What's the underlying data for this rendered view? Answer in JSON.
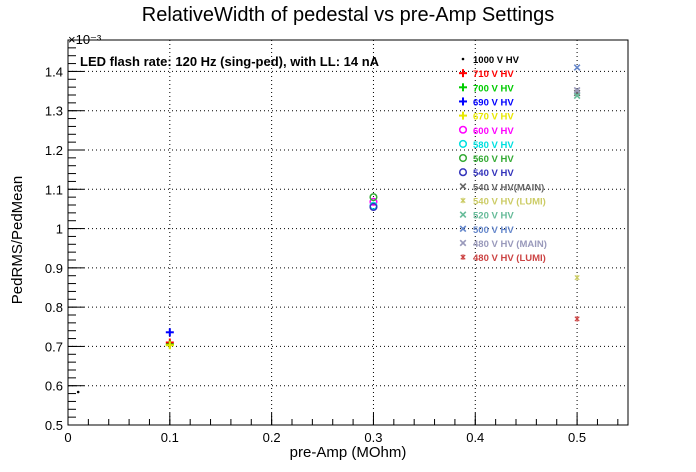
{
  "chart_data": {
    "type": "scatter",
    "title": "RelativeWidth of pedestal vs pre-Amp Settings",
    "xlabel": "pre-Amp (MOhm)",
    "ylabel": "PedRMS/PedMean",
    "y_exponent": "×10⁻³",
    "annotation": "LED flash rate: 120 Hz  (sing-ped), with LL: 14 nA",
    "xlim": [
      0,
      0.55
    ],
    "ylim": [
      0.5,
      1.48
    ],
    "x_ticks": [
      "0",
      "0.1",
      "0.2",
      "0.3",
      "0.4",
      "0.5"
    ],
    "y_ticks": [
      "0.5",
      "0.6",
      "0.7",
      "0.8",
      "0.9",
      "1",
      "1.1",
      "1.2",
      "1.3",
      "1.4"
    ],
    "grid": true,
    "legend_position": "top-right",
    "series": [
      {
        "name": "1000 V HV",
        "marker": "dot",
        "color": "#000000",
        "points": [
          [
            0.01,
            0.584
          ]
        ]
      },
      {
        "name": "710 V HV",
        "marker": "plus",
        "color": "#ff0000",
        "points": [
          [
            0.1,
            0.71
          ]
        ]
      },
      {
        "name": "700 V HV",
        "marker": "plus",
        "color": "#00cc00",
        "points": [
          [
            0.1,
            0.705
          ]
        ]
      },
      {
        "name": "690 V HV",
        "marker": "plus",
        "color": "#0000ff",
        "points": [
          [
            0.1,
            0.736
          ]
        ]
      },
      {
        "name": "670 V HV",
        "marker": "plus",
        "color": "#e8e800",
        "points": [
          [
            0.1,
            0.703
          ]
        ]
      },
      {
        "name": "600 V HV",
        "marker": "circle",
        "color": "#ff00ff",
        "points": [
          [
            0.3,
            1.068
          ]
        ]
      },
      {
        "name": "580 V HV",
        "marker": "circle",
        "color": "#00e0e0",
        "points": [
          [
            0.3,
            1.058
          ]
        ]
      },
      {
        "name": "560 V HV",
        "marker": "circle",
        "color": "#33aa33",
        "points": [
          [
            0.3,
            1.08
          ]
        ]
      },
      {
        "name": "540 V HV",
        "marker": "circle",
        "color": "#3333bb",
        "points": [
          [
            0.3,
            1.055
          ]
        ]
      },
      {
        "name": "540 V HV(MAIN)",
        "marker": "x",
        "color": "#666666",
        "points": [
          [
            0.5,
            1.345
          ]
        ]
      },
      {
        "name": "540 V HV (LUMI)",
        "marker": "star",
        "color": "#cccc66",
        "points": [
          [
            0.5,
            0.875
          ]
        ]
      },
      {
        "name": "520 V HV",
        "marker": "x",
        "color": "#66bb99",
        "points": [
          [
            0.5,
            1.338
          ]
        ]
      },
      {
        "name": "500 V HV",
        "marker": "x",
        "color": "#6688cc",
        "points": [
          [
            0.5,
            1.41
          ]
        ]
      },
      {
        "name": "480 V HV (MAIN)",
        "marker": "x",
        "color": "#9999bb",
        "points": [
          [
            0.5,
            1.352
          ]
        ]
      },
      {
        "name": "480 V HV (LUMI)",
        "marker": "star",
        "color": "#cc4444",
        "points": [
          [
            0.5,
            0.77
          ]
        ]
      }
    ]
  }
}
